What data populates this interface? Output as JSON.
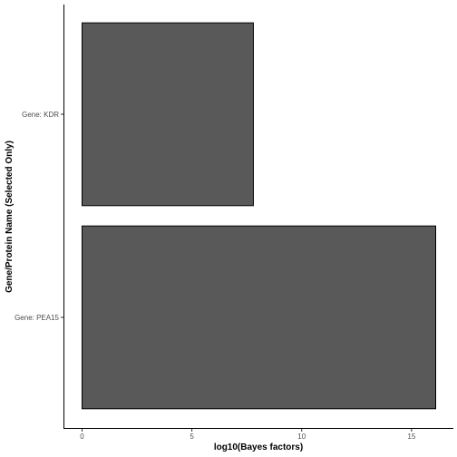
{
  "chart_data": {
    "type": "bar",
    "orientation": "horizontal",
    "categories": [
      "Gene: PEA15",
      "Gene: KDR"
    ],
    "values": [
      16.1,
      7.8
    ],
    "xlabel": "log10(Bayes factors)",
    "ylabel": "Gene/Protein Name (Selected Only)",
    "xlim": [
      0,
      16.1
    ],
    "xticks": [
      0,
      5,
      10,
      15
    ],
    "grid": false,
    "bar_color": "#595959"
  }
}
